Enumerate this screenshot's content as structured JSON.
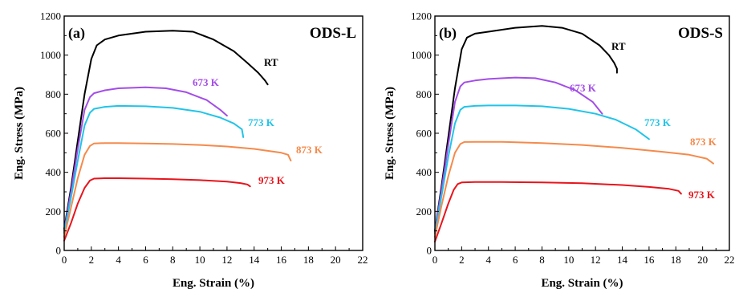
{
  "chart_data": [
    {
      "type": "line",
      "panel_label": "(a)",
      "title": "ODS-L",
      "xlabel": "Eng. Strain (%)",
      "ylabel": "Eng. Stress (MPa)",
      "xlim": [
        0,
        22
      ],
      "ylim": [
        0,
        1200
      ],
      "xticks": [
        0,
        2,
        4,
        6,
        8,
        10,
        12,
        14,
        16,
        18,
        20,
        22
      ],
      "yticks": [
        0,
        200,
        400,
        600,
        800,
        1000,
        1200
      ],
      "grid": false,
      "series": [
        {
          "name": "RT",
          "color": "#000000",
          "x": [
            0,
            0.5,
            1.0,
            1.5,
            2.0,
            2.4,
            3,
            4,
            6,
            8,
            9.5,
            11,
            12.5,
            13.5,
            14.3,
            14.8,
            15.0
          ],
          "y": [
            110,
            320,
            560,
            800,
            980,
            1050,
            1080,
            1100,
            1120,
            1125,
            1120,
            1080,
            1020,
            960,
            910,
            870,
            850
          ]
        },
        {
          "name": "673 K",
          "color": "#a34de8",
          "x": [
            0,
            0.5,
            1.0,
            1.5,
            1.9,
            2.2,
            3,
            4,
            6,
            7.5,
            9,
            10.5,
            11.5,
            12.0
          ],
          "y": [
            100,
            300,
            520,
            720,
            785,
            805,
            820,
            830,
            835,
            830,
            810,
            770,
            720,
            690
          ]
        },
        {
          "name": "773 K",
          "color": "#21c4e8",
          "x": [
            0,
            0.5,
            1.0,
            1.5,
            1.9,
            2.2,
            3,
            4,
            6,
            8,
            10,
            11.5,
            12.5,
            13.1,
            13.2
          ],
          "y": [
            90,
            270,
            460,
            640,
            705,
            725,
            735,
            740,
            738,
            730,
            710,
            680,
            650,
            620,
            580
          ]
        },
        {
          "name": "873 K",
          "color": "#f58a4b",
          "x": [
            0,
            0.5,
            1.0,
            1.5,
            1.9,
            2.2,
            3,
            4,
            6,
            8,
            10,
            12,
            14,
            16,
            16.5,
            16.7
          ],
          "y": [
            70,
            220,
            370,
            490,
            535,
            548,
            550,
            550,
            548,
            545,
            540,
            532,
            520,
            500,
            490,
            460
          ]
        },
        {
          "name": "973 K",
          "color": "#e8141c",
          "x": [
            0,
            0.5,
            1.0,
            1.5,
            1.9,
            2.2,
            3,
            4,
            6,
            8,
            10,
            12,
            13.0,
            13.5,
            13.7
          ],
          "y": [
            50,
            140,
            240,
            320,
            358,
            368,
            370,
            370,
            368,
            365,
            360,
            352,
            345,
            338,
            328
          ]
        }
      ],
      "series_labels": [
        "RT",
        "673 K",
        "773 K",
        "873 K",
        "973 K"
      ]
    },
    {
      "type": "line",
      "panel_label": "(b)",
      "title": "ODS-S",
      "xlabel": "Eng. Strain (%)",
      "ylabel": "Eng. Stress (MPa)",
      "xlim": [
        0,
        22
      ],
      "ylim": [
        0,
        1200
      ],
      "xticks": [
        0,
        2,
        4,
        6,
        8,
        10,
        12,
        14,
        16,
        18,
        20,
        22
      ],
      "yticks": [
        0,
        200,
        400,
        600,
        800,
        1000,
        1200
      ],
      "grid": false,
      "series": [
        {
          "name": "RT",
          "color": "#000000",
          "x": [
            0,
            0.5,
            1.0,
            1.5,
            2.0,
            2.4,
            3,
            4,
            6,
            8,
            9.5,
            11,
            12.3,
            13.0,
            13.4,
            13.6,
            13.6
          ],
          "y": [
            100,
            330,
            580,
            830,
            1030,
            1090,
            1110,
            1120,
            1140,
            1150,
            1140,
            1110,
            1050,
            1000,
            960,
            930,
            910
          ]
        },
        {
          "name": "673 K",
          "color": "#a34de8",
          "x": [
            0,
            0.5,
            1.0,
            1.5,
            1.9,
            2.2,
            3,
            4,
            6,
            7.5,
            9,
            10.5,
            11.8,
            12.5
          ],
          "y": [
            95,
            310,
            540,
            760,
            840,
            860,
            870,
            878,
            885,
            882,
            860,
            820,
            760,
            700
          ]
        },
        {
          "name": "773 K",
          "color": "#21c4e8",
          "x": [
            0,
            0.5,
            1.0,
            1.5,
            1.9,
            2.2,
            3,
            4,
            6,
            8,
            10,
            12,
            13.5,
            15.0,
            16.0
          ],
          "y": [
            85,
            280,
            480,
            650,
            720,
            735,
            740,
            742,
            742,
            738,
            725,
            700,
            670,
            620,
            570
          ]
        },
        {
          "name": "873 K",
          "color": "#f58a4b",
          "x": [
            0,
            0.5,
            1.0,
            1.5,
            1.9,
            2.2,
            3,
            5,
            8,
            11,
            14,
            17,
            19,
            20.3,
            20.8
          ],
          "y": [
            70,
            230,
            380,
            500,
            545,
            555,
            556,
            556,
            550,
            540,
            525,
            505,
            490,
            470,
            445
          ]
        },
        {
          "name": "973 K",
          "color": "#e8141c",
          "x": [
            0,
            0.5,
            1.0,
            1.4,
            1.7,
            2.0,
            3,
            5,
            8,
            11,
            14,
            16,
            17.5,
            18.2,
            18.4
          ],
          "y": [
            45,
            140,
            240,
            310,
            340,
            348,
            350,
            350,
            348,
            344,
            335,
            325,
            315,
            305,
            290
          ]
        }
      ],
      "series_labels": [
        "RT",
        "673 K",
        "773 K",
        "873 K",
        "973 K"
      ]
    }
  ]
}
